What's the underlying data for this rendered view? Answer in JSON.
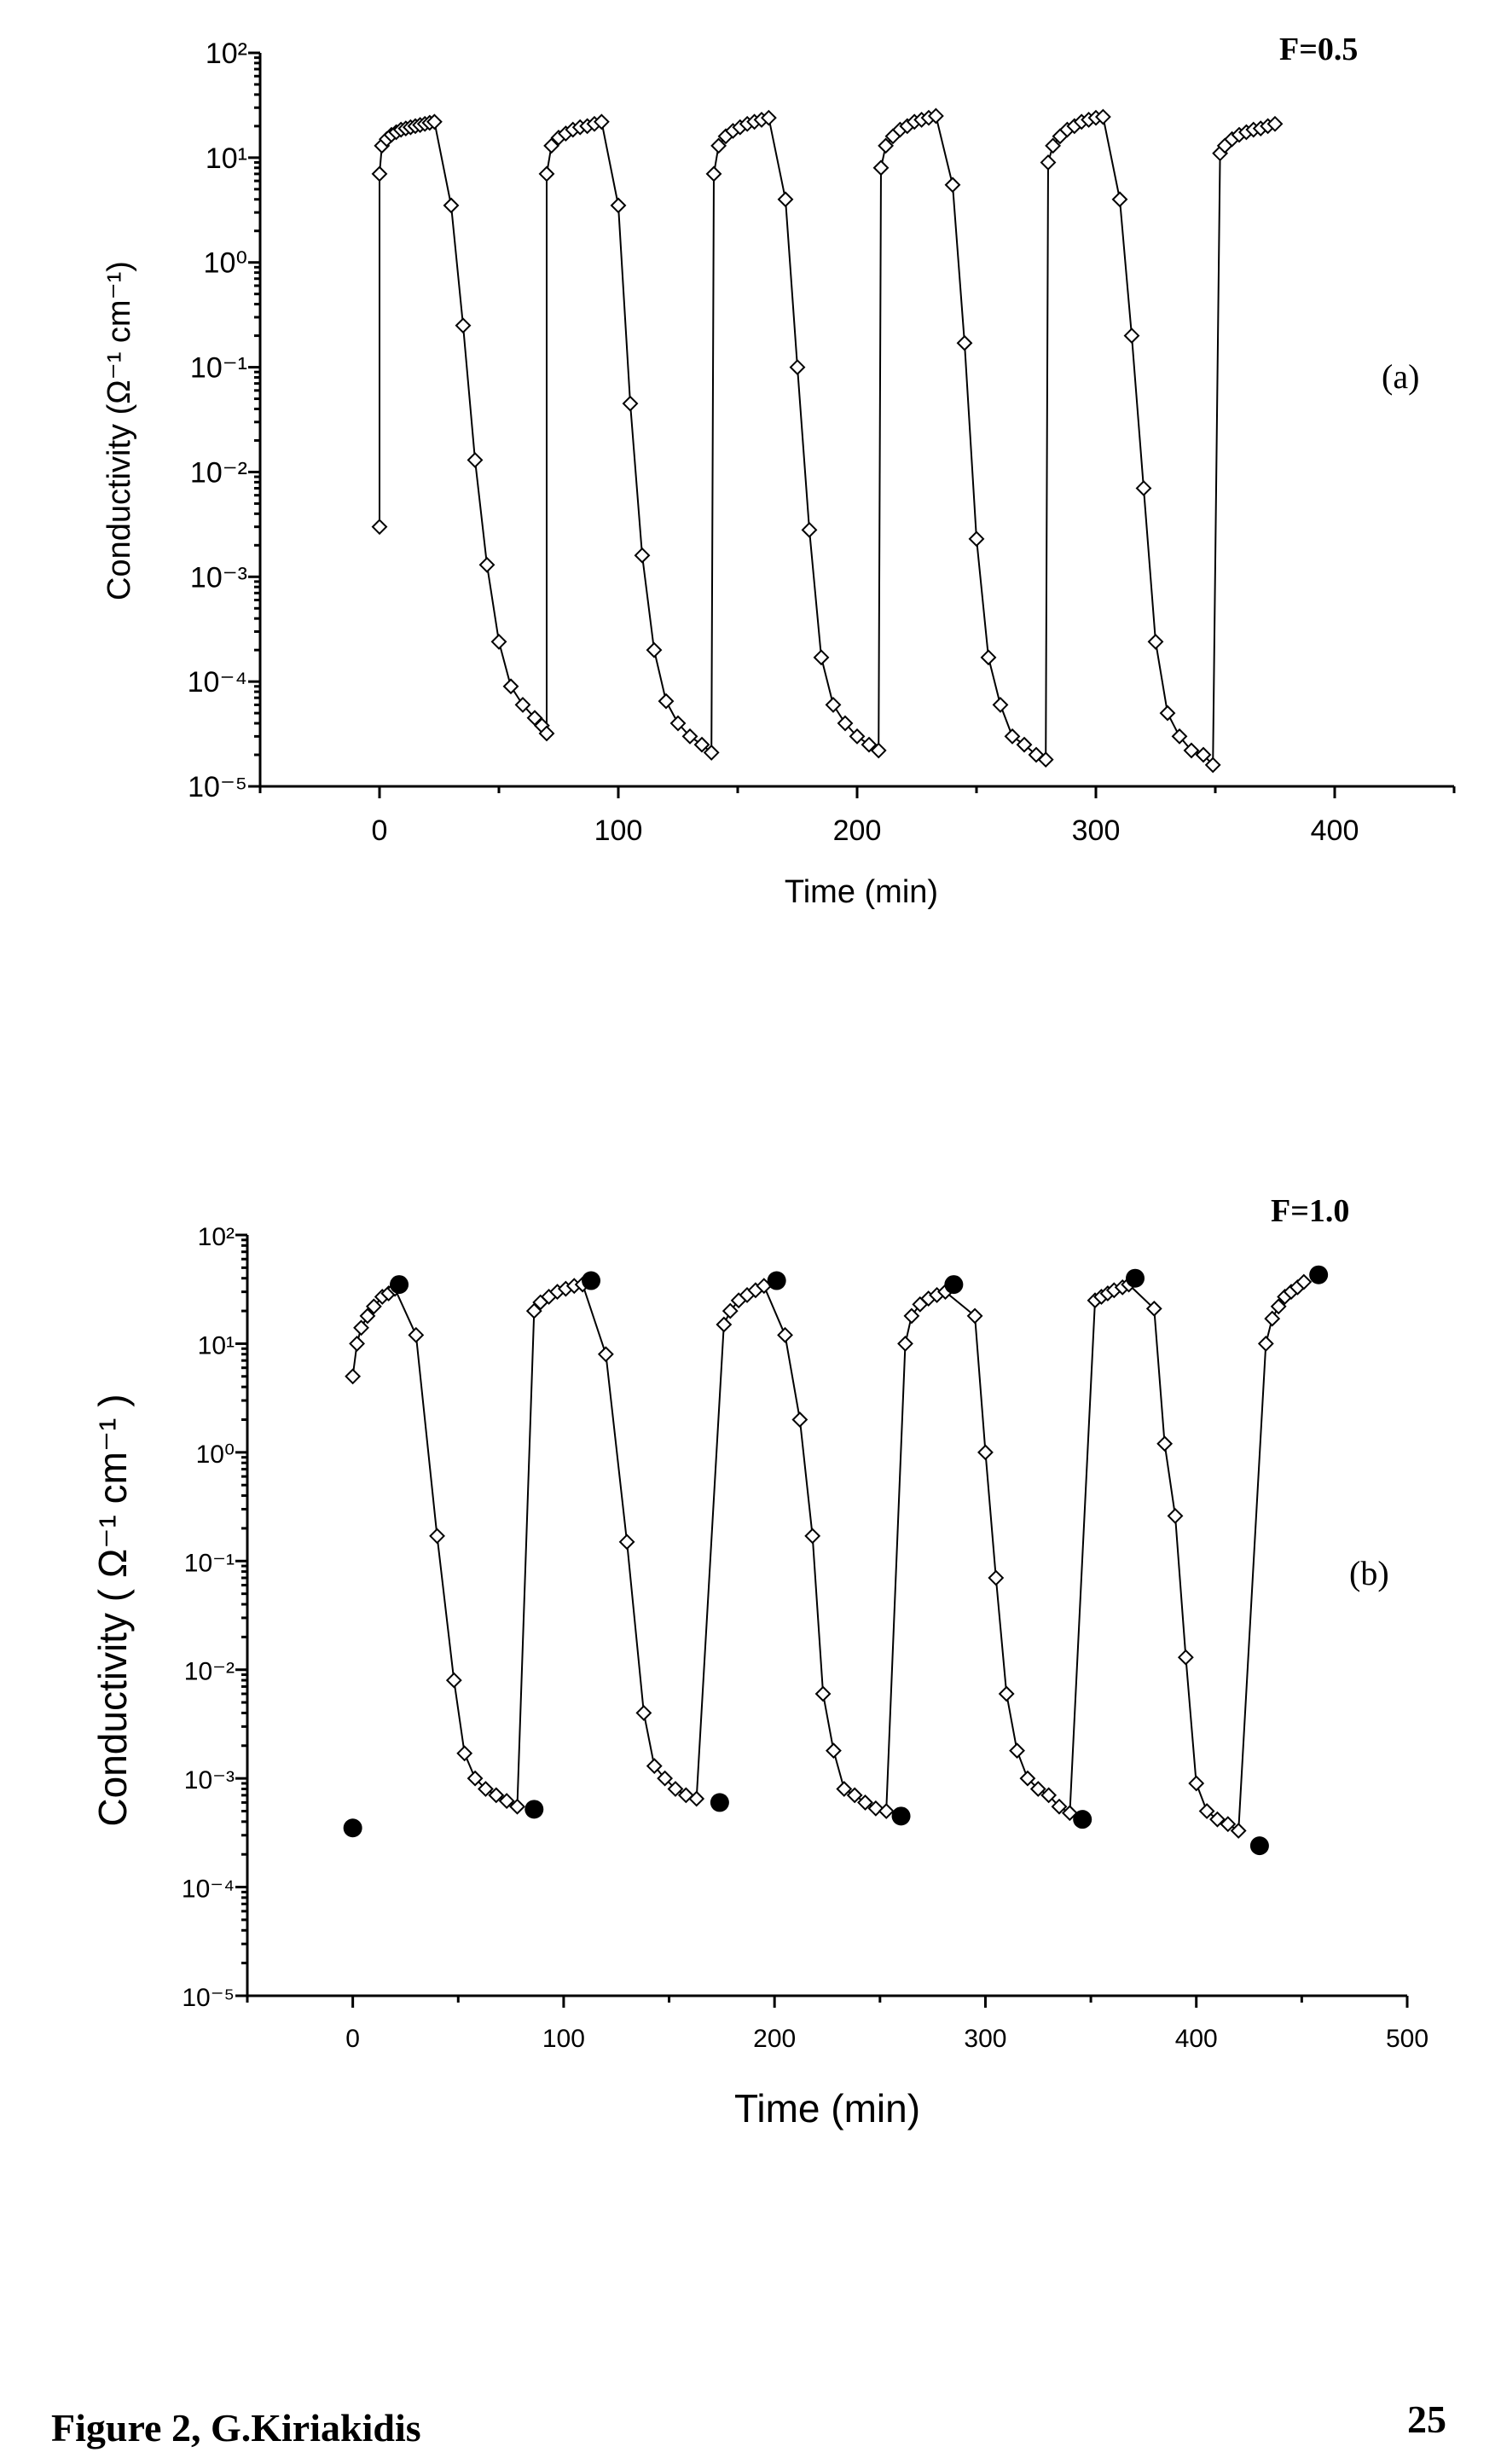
{
  "chart_data": [
    {
      "type": "scatter",
      "panel_label": "(a)",
      "annotation": "F=0.5",
      "xlabel": "Time (min)",
      "ylabel": "Conductivity (Ω⁻¹ cm⁻¹)",
      "xlim": [
        -50,
        450
      ],
      "ylim": [
        1e-05,
        100
      ],
      "yscale": "log",
      "xticks": [
        "0",
        "100",
        "200",
        "300",
        "400"
      ],
      "yticks": [
        "10⁻⁵",
        "10⁻⁴",
        "10⁻³",
        "10⁻²",
        "10⁻¹",
        "10⁰",
        "10¹",
        "10²"
      ],
      "grid": false,
      "series": [
        {
          "marker": "open-diamond",
          "points": [
            [
              0,
              0.003
            ],
            [
              0,
              7
            ],
            [
              1,
              13
            ],
            [
              3,
              15
            ],
            [
              5,
              16.5
            ],
            [
              7,
              17.5
            ],
            [
              9,
              18.5
            ],
            [
              11,
              19
            ],
            [
              13,
              19.5
            ],
            [
              15,
              20
            ],
            [
              17,
              20.5
            ],
            [
              19,
              21
            ],
            [
              21,
              21.5
            ],
            [
              23,
              22
            ],
            [
              30,
              3.5
            ],
            [
              35,
              0.25
            ],
            [
              40,
              0.013
            ],
            [
              45,
              0.0013
            ],
            [
              50,
              0.00024
            ],
            [
              55,
              9e-05
            ],
            [
              60,
              6e-05
            ],
            [
              65,
              4.5e-05
            ],
            [
              68,
              3.8e-05
            ],
            [
              70,
              3.2e-05
            ],
            [
              70,
              7
            ],
            [
              72,
              13
            ],
            [
              75,
              15.5
            ],
            [
              78,
              17
            ],
            [
              81,
              18.5
            ],
            [
              84,
              19.5
            ],
            [
              87,
              20
            ],
            [
              90,
              21
            ],
            [
              93,
              22
            ],
            [
              100,
              3.5
            ],
            [
              105,
              0.045
            ],
            [
              110,
              0.0016
            ],
            [
              115,
              0.0002
            ],
            [
              120,
              6.5e-05
            ],
            [
              125,
              4e-05
            ],
            [
              130,
              3e-05
            ],
            [
              135,
              2.5e-05
            ],
            [
              139,
              2.1e-05
            ],
            [
              140,
              7
            ],
            [
              142,
              13
            ],
            [
              145,
              16
            ],
            [
              148,
              18
            ],
            [
              151,
              19.5
            ],
            [
              154,
              21
            ],
            [
              157,
              22
            ],
            [
              160,
              23
            ],
            [
              163,
              24
            ],
            [
              170,
              4
            ],
            [
              175,
              0.1
            ],
            [
              180,
              0.0028
            ],
            [
              185,
              0.00017
            ],
            [
              190,
              6e-05
            ],
            [
              195,
              4e-05
            ],
            [
              200,
              3e-05
            ],
            [
              205,
              2.5e-05
            ],
            [
              209,
              2.2e-05
            ],
            [
              210,
              8
            ],
            [
              212,
              13
            ],
            [
              215,
              16
            ],
            [
              218,
              18.5
            ],
            [
              221,
              20
            ],
            [
              224,
              22
            ],
            [
              227,
              23
            ],
            [
              230,
              24
            ],
            [
              233,
              25
            ],
            [
              240,
              5.5
            ],
            [
              245,
              0.17
            ],
            [
              250,
              0.0023
            ],
            [
              255,
              0.00017
            ],
            [
              260,
              6e-05
            ],
            [
              265,
              3e-05
            ],
            [
              270,
              2.5e-05
            ],
            [
              275,
              2e-05
            ],
            [
              279,
              1.8e-05
            ],
            [
              280,
              9
            ],
            [
              282,
              13
            ],
            [
              285,
              16
            ],
            [
              288,
              18.5
            ],
            [
              291,
              20
            ],
            [
              294,
              22
            ],
            [
              297,
              23
            ],
            [
              300,
              24
            ],
            [
              303,
              24.5
            ],
            [
              310,
              4
            ],
            [
              315,
              0.2
            ],
            [
              320,
              0.007
            ],
            [
              325,
              0.00024
            ],
            [
              330,
              5e-05
            ],
            [
              335,
              3e-05
            ],
            [
              340,
              2.2e-05
            ],
            [
              345,
              2e-05
            ],
            [
              349,
              1.6e-05
            ],
            [
              352,
              11
            ],
            [
              354,
              13
            ],
            [
              357,
              15
            ],
            [
              360,
              16.5
            ],
            [
              363,
              17.5
            ],
            [
              366,
              18.5
            ],
            [
              369,
              19
            ],
            [
              372,
              20
            ],
            [
              375,
              21
            ]
          ]
        }
      ]
    },
    {
      "type": "scatter",
      "panel_label": "(b)",
      "annotation": "F=1.0",
      "xlabel": "Time (min)",
      "ylabel": "Conductivity ( Ω⁻¹ cm⁻¹ )",
      "xlim": [
        -50,
        500
      ],
      "ylim": [
        1e-05,
        100
      ],
      "yscale": "log",
      "xticks": [
        "0",
        "100",
        "200",
        "300",
        "400",
        "500"
      ],
      "yticks": [
        "10⁻⁵",
        "10⁻⁴",
        "10⁻³",
        "10⁻²",
        "10⁻¹",
        "10⁰",
        "10¹",
        "10²"
      ],
      "grid": false,
      "series": [
        {
          "marker": "open-diamond",
          "points": [
            [
              0,
              5
            ],
            [
              2,
              10
            ],
            [
              4,
              14
            ],
            [
              7,
              18
            ],
            [
              10,
              22
            ],
            [
              14,
              27
            ],
            [
              17,
              29
            ],
            [
              20,
              32
            ],
            [
              30,
              12
            ],
            [
              40,
              0.17
            ],
            [
              48,
              0.008
            ],
            [
              53,
              0.0017
            ],
            [
              58,
              0.001
            ],
            [
              63,
              0.0008
            ],
            [
              68,
              0.0007
            ],
            [
              73,
              0.00062
            ],
            [
              78,
              0.00055
            ],
            [
              86,
              20
            ],
            [
              89,
              24
            ],
            [
              93,
              27
            ],
            [
              97,
              30
            ],
            [
              101,
              32
            ],
            [
              105,
              34
            ],
            [
              109,
              35
            ],
            [
              120,
              8
            ],
            [
              130,
              0.15
            ],
            [
              138,
              0.004
            ],
            [
              143,
              0.0013
            ],
            [
              148,
              0.001
            ],
            [
              153,
              0.0008
            ],
            [
              158,
              0.0007
            ],
            [
              163,
              0.00065
            ],
            [
              176,
              15
            ],
            [
              179,
              20
            ],
            [
              183,
              25
            ],
            [
              187,
              28
            ],
            [
              191,
              31
            ],
            [
              195,
              34
            ],
            [
              205,
              12
            ],
            [
              212,
              2
            ],
            [
              218,
              0.17
            ],
            [
              223,
              0.006
            ],
            [
              228,
              0.0018
            ],
            [
              233,
              0.0008
            ],
            [
              238,
              0.0007
            ],
            [
              243,
              0.0006
            ],
            [
              248,
              0.00053
            ],
            [
              253,
              0.0005
            ],
            [
              262,
              10
            ],
            [
              265,
              18
            ],
            [
              269,
              23
            ],
            [
              273,
              26
            ],
            [
              277,
              28
            ],
            [
              281,
              30
            ],
            [
              295,
              18
            ],
            [
              300,
              1
            ],
            [
              305,
              0.07
            ],
            [
              310,
              0.006
            ],
            [
              315,
              0.0018
            ],
            [
              320,
              0.001
            ],
            [
              325,
              0.0008
            ],
            [
              330,
              0.0007
            ],
            [
              335,
              0.00055
            ],
            [
              340,
              0.00048
            ],
            [
              352,
              25
            ],
            [
              355,
              27
            ],
            [
              358,
              29
            ],
            [
              361,
              31
            ],
            [
              365,
              33
            ],
            [
              368,
              35
            ],
            [
              380,
              21
            ],
            [
              385,
              1.2
            ],
            [
              390,
              0.26
            ],
            [
              395,
              0.013
            ],
            [
              400,
              0.0009
            ],
            [
              405,
              0.0005
            ],
            [
              410,
              0.00042
            ],
            [
              415,
              0.00038
            ],
            [
              420,
              0.00033
            ],
            [
              433,
              10
            ],
            [
              436,
              17
            ],
            [
              439,
              22
            ],
            [
              442,
              27
            ],
            [
              445,
              30
            ],
            [
              448,
              33
            ],
            [
              451,
              37
            ]
          ]
        },
        {
          "marker": "filled-circle",
          "points": [
            [
              0,
              0.00035
            ],
            [
              22,
              35
            ],
            [
              86,
              0.00052
            ],
            [
              113,
              38
            ],
            [
              174,
              0.0006
            ],
            [
              201,
              38
            ],
            [
              260,
              0.00045
            ],
            [
              285,
              35
            ],
            [
              346,
              0.00042
            ],
            [
              371,
              40
            ],
            [
              430,
              0.00024
            ],
            [
              458,
              43
            ]
          ]
        }
      ]
    }
  ],
  "footer": {
    "caption": "Figure 2, G.Kiriakidis",
    "page_number": "25"
  }
}
